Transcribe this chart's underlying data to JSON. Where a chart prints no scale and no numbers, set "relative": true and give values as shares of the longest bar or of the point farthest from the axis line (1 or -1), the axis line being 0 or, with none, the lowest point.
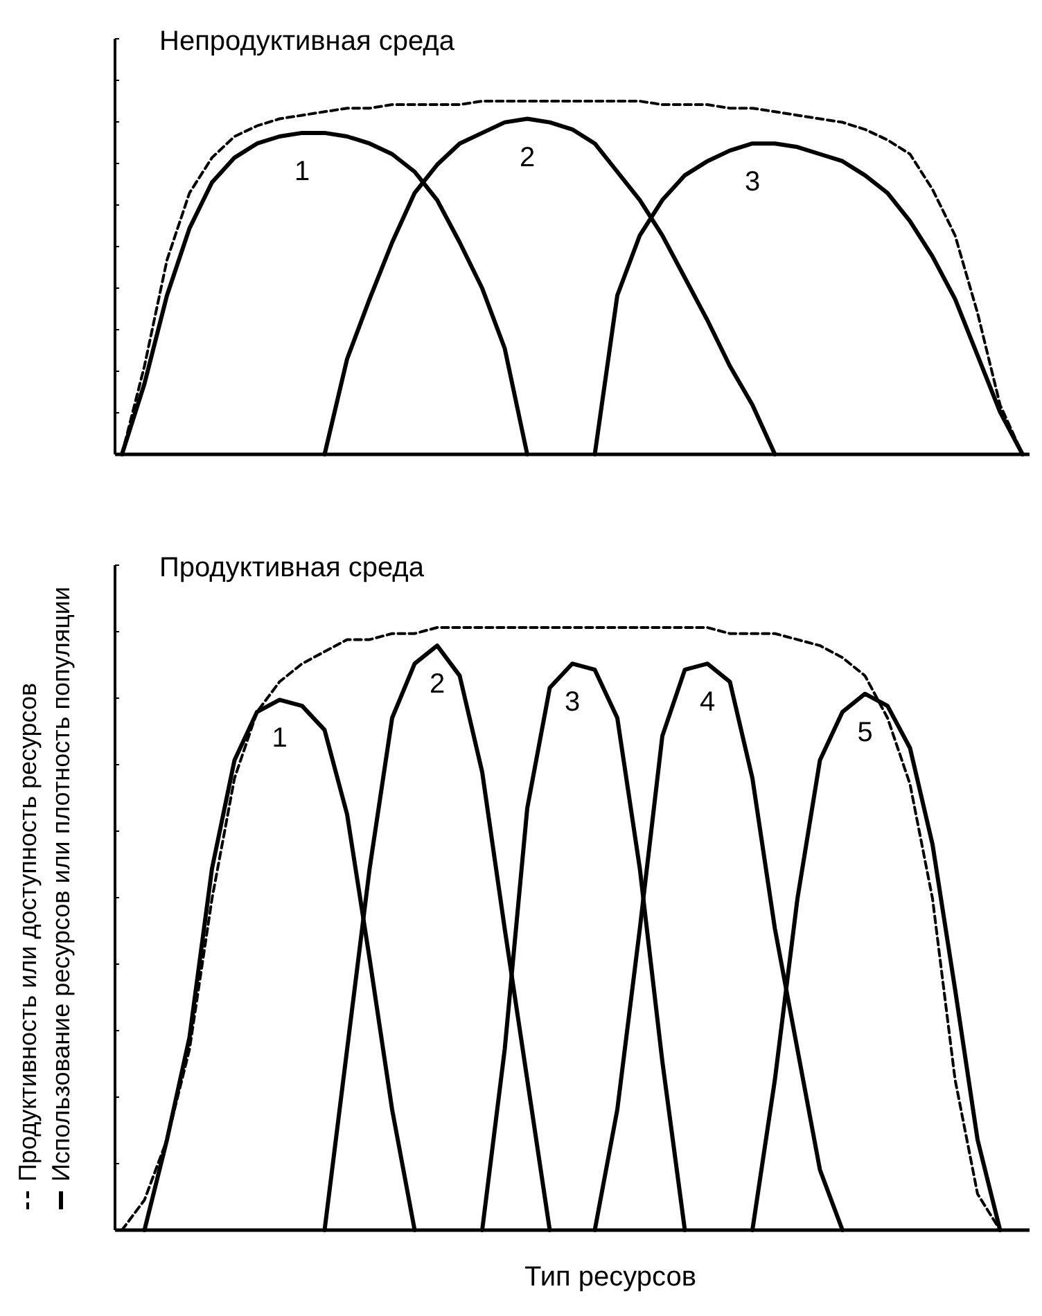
{
  "chart_data": [
    {
      "type": "line",
      "title": "Непродуктивная среда",
      "relative": true,
      "marker": "none",
      "categories": [
        null,
        null,
        null,
        null,
        null,
        null,
        null,
        null,
        null,
        null,
        null,
        null,
        null,
        null,
        null,
        null,
        null,
        null,
        null,
        null,
        null,
        null,
        null,
        null,
        null,
        null,
        null,
        null,
        null,
        null,
        null,
        null,
        null,
        null,
        null,
        null,
        null,
        null,
        null,
        null,
        null
      ],
      "series": [
        {
          "color": "#000000",
          "line_style": "dashed",
          "values": [
            0,
            0.25,
            0.55,
            0.74,
            0.84,
            0.9,
            0.93,
            0.95,
            0.96,
            0.97,
            0.98,
            0.98,
            0.99,
            0.99,
            0.99,
            0.99,
            1,
            1,
            1,
            1,
            1,
            1,
            1,
            1,
            0.99,
            0.99,
            0.99,
            0.98,
            0.98,
            0.97,
            0.96,
            0.95,
            0.94,
            0.92,
            0.89,
            0.85,
            0.75,
            0.62,
            0.4,
            0.14,
            0
          ]
        },
        {
          "name": "1",
          "color": "#000000",
          "line_style": "solid",
          "values": [
            0,
            0.2,
            0.45,
            0.64,
            0.77,
            0.84,
            0.88,
            0.9,
            0.91,
            0.91,
            0.9,
            0.88,
            0.85,
            0.8,
            0.72,
            0.6,
            0.47,
            0.3,
            0,
            null,
            null,
            null,
            null,
            null,
            null,
            null,
            null,
            null,
            null,
            null,
            null,
            null,
            null,
            null,
            null,
            null,
            null,
            null,
            null,
            null,
            null
          ]
        },
        {
          "name": "2",
          "color": "#000000",
          "line_style": "solid",
          "values": [
            null,
            null,
            null,
            null,
            null,
            null,
            null,
            null,
            null,
            0,
            0.27,
            0.44,
            0.6,
            0.74,
            0.82,
            0.88,
            0.91,
            0.94,
            0.95,
            0.94,
            0.92,
            0.88,
            0.8,
            0.72,
            0.62,
            0.5,
            0.38,
            0.25,
            0.14,
            0,
            null,
            null,
            null,
            null,
            null,
            null,
            null,
            null,
            null,
            null,
            null
          ]
        },
        {
          "name": "3",
          "color": "#000000",
          "line_style": "solid",
          "values": [
            null,
            null,
            null,
            null,
            null,
            null,
            null,
            null,
            null,
            null,
            null,
            null,
            null,
            null,
            null,
            null,
            null,
            null,
            null,
            null,
            null,
            0,
            0.45,
            0.62,
            0.72,
            0.79,
            0.83,
            0.86,
            0.88,
            0.88,
            0.87,
            0.85,
            0.83,
            0.79,
            0.74,
            0.66,
            0.56,
            0.44,
            0.28,
            0.12,
            0
          ]
        }
      ]
    },
    {
      "type": "line",
      "title": "Продуктивная среда",
      "xlabel": "Тип ресурсов",
      "ylabel": "Использование ресурсов или плотность популяции",
      "annotations": [
        "Продуктивность или доступность ресурсов"
      ],
      "relative": true,
      "marker": "none",
      "categories": [
        null,
        null,
        null,
        null,
        null,
        null,
        null,
        null,
        null,
        null,
        null,
        null,
        null,
        null,
        null,
        null,
        null,
        null,
        null,
        null,
        null,
        null,
        null,
        null,
        null,
        null,
        null,
        null,
        null,
        null,
        null,
        null,
        null,
        null,
        null,
        null,
        null,
        null,
        null,
        null,
        null
      ],
      "series": [
        {
          "color": "#000000",
          "line_style": "dashed",
          "values": [
            0,
            0.05,
            0.15,
            0.3,
            0.55,
            0.75,
            0.86,
            0.91,
            0.94,
            0.96,
            0.98,
            0.98,
            0.99,
            0.99,
            1,
            1,
            1,
            1,
            1,
            1,
            1,
            1,
            1,
            1,
            1,
            1,
            1,
            0.99,
            0.99,
            0.99,
            0.98,
            0.97,
            0.95,
            0.92,
            0.85,
            0.74,
            0.55,
            0.25,
            0.06,
            0,
            null
          ]
        },
        {
          "name": "1",
          "color": "#000000",
          "line_style": "solid",
          "values": [
            null,
            0,
            0.15,
            0.32,
            0.6,
            0.78,
            0.86,
            0.88,
            0.87,
            0.83,
            0.69,
            0.45,
            0.2,
            0,
            null,
            null,
            null,
            null,
            null,
            null,
            null,
            null,
            null,
            null,
            null,
            null,
            null,
            null,
            null,
            null,
            null,
            null,
            null,
            null,
            null,
            null,
            null,
            null,
            null,
            null,
            null
          ]
        },
        {
          "name": "2",
          "color": "#000000",
          "line_style": "solid",
          "values": [
            null,
            null,
            null,
            null,
            null,
            null,
            null,
            null,
            null,
            0,
            0.3,
            0.6,
            0.85,
            0.94,
            0.97,
            0.92,
            0.76,
            0.5,
            0.25,
            0,
            null,
            null,
            null,
            null,
            null,
            null,
            null,
            null,
            null,
            null,
            null,
            null,
            null,
            null,
            null,
            null,
            null,
            null,
            null,
            null,
            null
          ]
        },
        {
          "name": "3",
          "color": "#000000",
          "line_style": "solid",
          "values": [
            null,
            null,
            null,
            null,
            null,
            null,
            null,
            null,
            null,
            null,
            null,
            null,
            null,
            null,
            null,
            null,
            0,
            0.3,
            0.7,
            0.9,
            0.94,
            0.93,
            0.85,
            0.6,
            0.28,
            0,
            null,
            null,
            null,
            null,
            null,
            null,
            null,
            null,
            null,
            null,
            null,
            null,
            null,
            null,
            null
          ]
        },
        {
          "name": "4",
          "color": "#000000",
          "line_style": "solid",
          "values": [
            null,
            null,
            null,
            null,
            null,
            null,
            null,
            null,
            null,
            null,
            null,
            null,
            null,
            null,
            null,
            null,
            null,
            null,
            null,
            null,
            null,
            0,
            0.2,
            0.5,
            0.82,
            0.93,
            0.94,
            0.91,
            0.75,
            0.5,
            0.3,
            0.1,
            0,
            null,
            null,
            null,
            null,
            null,
            null,
            null,
            null
          ]
        },
        {
          "name": "5",
          "color": "#000000",
          "line_style": "solid",
          "values": [
            null,
            null,
            null,
            null,
            null,
            null,
            null,
            null,
            null,
            null,
            null,
            null,
            null,
            null,
            null,
            null,
            null,
            null,
            null,
            null,
            null,
            null,
            null,
            null,
            null,
            null,
            null,
            null,
            0,
            0.25,
            0.55,
            0.78,
            0.86,
            0.89,
            0.87,
            0.8,
            0.64,
            0.4,
            0.15,
            0,
            null
          ]
        }
      ]
    }
  ]
}
